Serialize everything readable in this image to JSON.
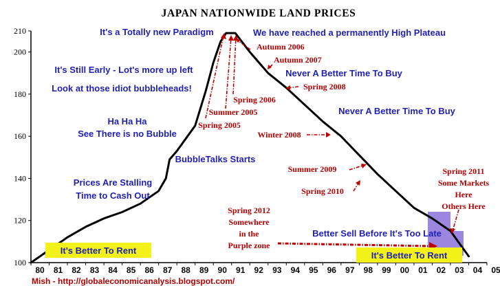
{
  "chart_data": {
    "type": "line",
    "title": "JAPAN NATIONWIDE LAND PRICES",
    "xlabel": "",
    "ylabel": "",
    "x_tick_labels": [
      "80",
      "81",
      "82",
      "83",
      "84",
      "85",
      "86",
      "87",
      "88",
      "89",
      "90",
      "91",
      "92",
      "93",
      "94",
      "95",
      "96",
      "97",
      "98",
      "99",
      "00",
      "01",
      "02",
      "03",
      "04",
      "05"
    ],
    "y_ticks": [
      100,
      120,
      140,
      160,
      180,
      200,
      210
    ],
    "ylim": [
      100,
      210
    ],
    "xlim": [
      1980,
      2005
    ],
    "grid": false,
    "series": [
      {
        "points": [
          [
            1980,
            100
          ],
          [
            1981,
            106
          ],
          [
            1982,
            112
          ],
          [
            1983,
            117
          ],
          [
            1984,
            121
          ],
          [
            1985,
            124
          ],
          [
            1986,
            128
          ],
          [
            1987,
            134
          ],
          [
            1987.4,
            140
          ],
          [
            1987.6,
            149
          ],
          [
            1988,
            153
          ],
          [
            1989,
            165
          ],
          [
            1989.6,
            182
          ],
          [
            1990,
            195
          ],
          [
            1990.4,
            205
          ],
          [
            1990.7,
            209
          ],
          [
            1991.2,
            209
          ],
          [
            1992,
            200
          ],
          [
            1993,
            190
          ],
          [
            1994,
            183
          ],
          [
            1995,
            175
          ],
          [
            1996,
            167
          ],
          [
            1997,
            160
          ],
          [
            1998,
            151
          ],
          [
            1999,
            142
          ],
          [
            2000,
            134
          ],
          [
            2001,
            126
          ],
          [
            2002,
            121
          ],
          [
            2003,
            115
          ],
          [
            2004,
            103
          ]
        ]
      }
    ],
    "annotations": [
      {
        "text": "It's a Totally new Paradigm",
        "color": "#1f1fb4"
      },
      {
        "text": "We have reached a permanently High Plateau",
        "color": "#1f1fb4"
      },
      {
        "text": "Autumn 2006",
        "color": "#b40000"
      },
      {
        "text": "Autumn 2007",
        "color": "#b40000"
      },
      {
        "text": "Never A Better Time To Buy",
        "color": "#1f1fb4"
      },
      {
        "text": "Spring 2008",
        "color": "#b40000"
      },
      {
        "text": "It's Still Early - Lot's more up left",
        "color": "#1f1fb4"
      },
      {
        "text": "Look at those idiot bubbleheads!",
        "color": "#1f1fb4"
      },
      {
        "text": "Spring 2006",
        "color": "#b40000"
      },
      {
        "text": "Summer 2005",
        "color": "#b40000"
      },
      {
        "text": "Spring 2005",
        "color": "#b40000"
      },
      {
        "text": "Never A Better Time To Buy",
        "color": "#1f1fb4"
      },
      {
        "text": "Ha Ha Ha",
        "color": "#1f1fb4"
      },
      {
        "text": "See There is no Bubble",
        "color": "#1f1fb4"
      },
      {
        "text": "Winter 2008",
        "color": "#b40000"
      },
      {
        "text": "BubbleTalks Starts",
        "color": "#1f1fb4"
      },
      {
        "text": "Summer 2009",
        "color": "#b40000"
      },
      {
        "text": "Spring 2010",
        "color": "#b40000"
      },
      {
        "text": "Spring 2011",
        "color": "#b40000"
      },
      {
        "text": "Some Markets",
        "color": "#b40000"
      },
      {
        "text": "Here",
        "color": "#b40000"
      },
      {
        "text": "Others Here",
        "color": "#b40000"
      },
      {
        "text": "Prices Are Stalling",
        "color": "#1f1fb4"
      },
      {
        "text": "Time to Cash Out",
        "color": "#1f1fb4"
      },
      {
        "text": "Spring 2012",
        "color": "#b40000"
      },
      {
        "text": "Somewhere",
        "color": "#b40000"
      },
      {
        "text": "in the",
        "color": "#b40000"
      },
      {
        "text": "Purple zone",
        "color": "#b40000"
      },
      {
        "text": "Better Sell Before It's Too Late",
        "color": "#1f1fb4"
      },
      {
        "text": "It's Better To Rent",
        "color": "#1f1fb4",
        "highlight": "#f2f21a"
      },
      {
        "text": "It's Better To Rent",
        "color": "#1f1fb4",
        "highlight": "#f2f21a"
      }
    ],
    "purple_zone_color": "#9b87e0",
    "line_color": "#000000"
  },
  "footer": {
    "credit": "Mish - http://globaleconomicanalysis.blogspot.com/"
  }
}
